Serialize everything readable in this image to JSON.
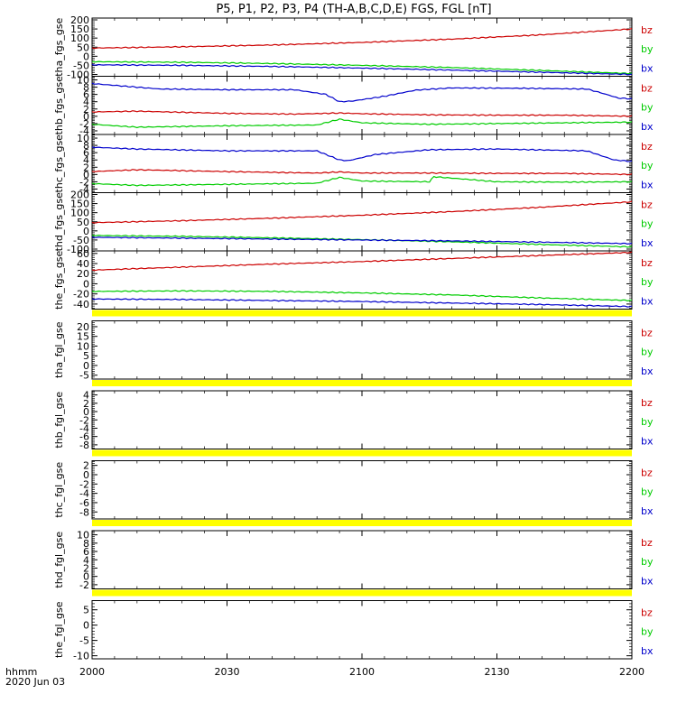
{
  "title": "P5, P1, P2, P3, P4 (TH-A,B,C,D,E) FGS, FGL [nT]",
  "footer": {
    "time_label": "hhmm",
    "date_label": "2020 Jun 03"
  },
  "colors": {
    "bx": "#0000cc",
    "by": "#00cc00",
    "bz": "#cc0000",
    "flag": "#ffff00",
    "axes": "#000000"
  },
  "chart_data": {
    "type": "line",
    "x_axis": {
      "range": [
        "20:00",
        "22:00"
      ],
      "tick_labels": [
        "2000",
        "2030",
        "2100",
        "2130",
        "2200"
      ],
      "tick_minutes": [
        0,
        30,
        60,
        90,
        120
      ],
      "minor_tick_every_minutes": 5
    },
    "legend_labels": [
      "bz",
      "by",
      "bx"
    ],
    "panels": [
      {
        "ylabel": "tha_fgs_gse",
        "ylim": [
          -110,
          210
        ],
        "tick_values": [
          200,
          150,
          100,
          50,
          0,
          -50,
          -100
        ],
        "tick_labels": [
          "200",
          "150",
          "100",
          "50",
          "0",
          "-50",
          "-100"
        ],
        "flag_bar": false,
        "series": [
          {
            "name": "bz",
            "x": [
              0,
              20,
              40,
              60,
              80,
              100,
              120
            ],
            "y": [
              45,
              52,
              62,
              76,
              94,
              118,
              150
            ]
          },
          {
            "name": "by",
            "x": [
              0,
              20,
              40,
              60,
              80,
              100,
              120
            ],
            "y": [
              -30,
              -33,
              -40,
              -50,
              -62,
              -78,
              -95
            ]
          },
          {
            "name": "bx",
            "x": [
              0,
              20,
              40,
              60,
              80,
              100,
              120
            ],
            "y": [
              -47,
              -50,
              -56,
              -65,
              -76,
              -88,
              -100
            ]
          }
        ]
      },
      {
        "ylabel": "thb_fgs_gse",
        "ylim": [
          -5,
          11
        ],
        "tick_values": [
          10,
          8,
          6,
          4,
          2,
          0,
          -2,
          -4
        ],
        "tick_labels": [
          "10",
          "8",
          "6",
          "4",
          "2",
          "0",
          "-2",
          "-4"
        ],
        "flag_bar": false,
        "series": [
          {
            "name": "bx",
            "x": [
              0,
              5,
              15,
              30,
              45,
              52,
              55,
              58,
              65,
              72,
              80,
              95,
              110,
              113,
              117,
              120
            ],
            "y": [
              9,
              8.5,
              7.5,
              7.3,
              7.3,
              6,
              4,
              4.2,
              5.5,
              7.2,
              7.8,
              7.7,
              7.5,
              6.5,
              5,
              4.8
            ]
          },
          {
            "name": "bz",
            "x": [
              0,
              10,
              30,
              45,
              55,
              60,
              75,
              90,
              105,
              120
            ],
            "y": [
              1.2,
              1.4,
              0.8,
              0.6,
              0.9,
              0.7,
              0.4,
              0.3,
              0.3,
              0
            ]
          },
          {
            "name": "by",
            "x": [
              0,
              10,
              30,
              50,
              55,
              60,
              75,
              90,
              105,
              120
            ],
            "y": [
              -2.2,
              -3.0,
              -2.6,
              -2.4,
              -0.8,
              -1.8,
              -2.2,
              -2.0,
              -1.8,
              -1.6
            ]
          }
        ]
      },
      {
        "ylabel": "thc_fgs_gse",
        "ylim": [
          -5,
          11
        ],
        "tick_values": [
          10,
          8,
          6,
          4,
          2,
          0,
          -2,
          -4
        ],
        "tick_labels": [
          "10",
          "8",
          "6",
          "4",
          "2",
          "0",
          "-2",
          "-4"
        ],
        "flag_bar": false,
        "series": [
          {
            "name": "bx",
            "x": [
              0,
              10,
              30,
              50,
              55,
              57,
              63,
              75,
              90,
              110,
              116,
              120
            ],
            "y": [
              7.5,
              7.0,
              6.5,
              6.5,
              4,
              3.8,
              5.5,
              6.8,
              7.0,
              6.5,
              4.0,
              3.6
            ]
          },
          {
            "name": "bz",
            "x": [
              0,
              10,
              30,
              50,
              55,
              60,
              75,
              90,
              105,
              120
            ],
            "y": [
              0.8,
              1.3,
              0.8,
              0.4,
              0.7,
              0.4,
              0.4,
              0.3,
              0.3,
              0
            ]
          },
          {
            "name": "by",
            "x": [
              0,
              10,
              30,
              50,
              55,
              60,
              75,
              76,
              90,
              105,
              120
            ],
            "y": [
              -2.5,
              -3.0,
              -2.7,
              -2.4,
              -0.8,
              -1.8,
              -2.0,
              -0.6,
              -2.0,
              -2.1,
              -2.0
            ]
          }
        ]
      },
      {
        "ylabel": "thd_fgs_gse",
        "ylim": [
          -110,
          210
        ],
        "tick_values": [
          200,
          150,
          100,
          50,
          0,
          -50,
          -100
        ],
        "tick_labels": [
          "200",
          "150",
          "100",
          "50",
          "0",
          "-50",
          "-100"
        ],
        "flag_bar": false,
        "series": [
          {
            "name": "bz",
            "x": [
              0,
              20,
              40,
              60,
              80,
              100,
              120
            ],
            "y": [
              45,
              56,
              70,
              86,
              106,
              130,
              160
            ]
          },
          {
            "name": "by",
            "x": [
              0,
              20,
              40,
              60,
              80,
              100,
              120
            ],
            "y": [
              -25,
              -30,
              -38,
              -48,
              -60,
              -75,
              -88
            ]
          },
          {
            "name": "bx",
            "x": [
              0,
              20,
              40,
              60,
              80,
              100,
              120
            ],
            "y": [
              -35,
              -40,
              -45,
              -50,
              -55,
              -62,
              -70
            ]
          }
        ]
      },
      {
        "ylabel": "the_fgs_gse",
        "ylim": [
          -50,
          65
        ],
        "tick_values": [
          60,
          40,
          20,
          0,
          -20,
          -40
        ],
        "tick_labels": [
          "60",
          "40",
          "20",
          "0",
          "-20",
          "-40"
        ],
        "flag_bar": true,
        "series": [
          {
            "name": "bz",
            "x": [
              0,
              20,
              40,
              60,
              80,
              100,
              120
            ],
            "y": [
              27,
              33,
              39,
              44,
              50,
              56,
              62
            ]
          },
          {
            "name": "by",
            "x": [
              0,
              20,
              40,
              60,
              80,
              100,
              120
            ],
            "y": [
              -15,
              -14,
              -15,
              -18,
              -22,
              -28,
              -33
            ]
          },
          {
            "name": "bx",
            "x": [
              0,
              20,
              40,
              60,
              80,
              100,
              120
            ],
            "y": [
              -30,
              -31,
              -33,
              -35,
              -38,
              -41,
              -45
            ]
          }
        ]
      },
      {
        "ylabel": "tha_fgl_gse",
        "ylim": [
          -7,
          23
        ],
        "tick_values": [
          20,
          15,
          10,
          5,
          0,
          -5
        ],
        "tick_labels": [
          "20",
          "15",
          "10",
          "5",
          "0",
          "-5"
        ],
        "flag_bar": true,
        "series": []
      },
      {
        "ylabel": "thb_fgl_gse",
        "ylim": [
          -9,
          5
        ],
        "tick_values": [
          4,
          2,
          0,
          -2,
          -4,
          -6,
          -8
        ],
        "tick_labels": [
          "4",
          "2",
          "0",
          "-2",
          "-4",
          "-6",
          "-8"
        ],
        "flag_bar": true,
        "series": []
      },
      {
        "ylabel": "thc_fgl_gse",
        "ylim": [
          -9.5,
          3
        ],
        "tick_values": [
          2,
          0,
          -2,
          -4,
          -6,
          -8
        ],
        "tick_labels": [
          "2",
          "0",
          "-2",
          "-4",
          "-6",
          "-8"
        ],
        "flag_bar": true,
        "series": []
      },
      {
        "ylabel": "thd_fgl_gse",
        "ylim": [
          -3,
          11
        ],
        "tick_values": [
          10,
          8,
          6,
          4,
          2,
          0,
          -2
        ],
        "tick_labels": [
          "10",
          "8",
          "6",
          "4",
          "2",
          "0",
          "-2"
        ],
        "flag_bar": true,
        "series": []
      },
      {
        "ylabel": "the_fgl_gse",
        "ylim": [
          -11,
          8
        ],
        "tick_values": [
          5,
          0,
          -5,
          -10
        ],
        "tick_labels": [
          "5",
          "0",
          "-5",
          "-10"
        ],
        "flag_bar": false,
        "series": []
      }
    ]
  }
}
